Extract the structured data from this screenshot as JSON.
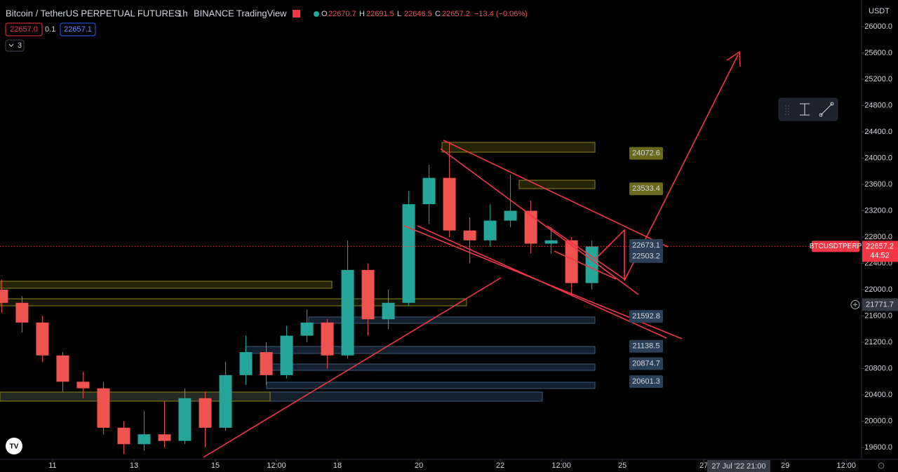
{
  "legend": {
    "symbol": "Bitcoin / TetherUS PERPETUAL FUTURES",
    "interval": "1h",
    "exchange": "BINANCE",
    "source": "TradingView",
    "ohlc": [
      {
        "key": "O",
        "value": "22670.7"
      },
      {
        "key": "H",
        "value": "22691.5"
      },
      {
        "key": "L",
        "value": "22646.5"
      },
      {
        "key": "C",
        "value": "22657.2"
      }
    ],
    "change": "−13.4 (−0.06%)",
    "sell": "22657.0",
    "spread": "0.1",
    "buy": "22657.1",
    "indicators": "3"
  },
  "chart_data": {
    "type": "candlestick",
    "currency": "USDT",
    "up_color": "#26a69a",
    "down_color": "#ef5350",
    "x": [
      -30,
      -18,
      -6,
      6,
      18,
      30,
      42,
      54,
      66,
      78,
      90,
      102,
      114,
      126,
      138,
      150,
      162,
      174,
      186,
      198,
      210,
      222,
      234,
      246,
      258,
      270,
      282,
      294,
      306,
      318
    ],
    "open": [
      22000,
      21800,
      21500,
      21000,
      20600,
      20500,
      19900,
      19650,
      19800,
      19700,
      20350,
      19900,
      20700,
      21050,
      20700,
      21300,
      21500,
      21000,
      22300,
      21550,
      21800,
      23300,
      23700,
      22900,
      22750,
      23050,
      23200,
      22700,
      22750,
      22100
    ],
    "high": [
      22150,
      21900,
      21600,
      21050,
      20750,
      20600,
      20000,
      20150,
      20300,
      20500,
      20450,
      20900,
      21300,
      21200,
      21450,
      21700,
      21550,
      22750,
      22400,
      22000,
      23500,
      23900,
      24250,
      23100,
      23300,
      23750,
      23350,
      22950,
      22800,
      22750
    ],
    "low": [
      21650,
      21350,
      20900,
      20450,
      20350,
      19800,
      19500,
      19550,
      19600,
      19650,
      19600,
      19850,
      20550,
      20550,
      20650,
      21200,
      20800,
      20950,
      21300,
      21400,
      21750,
      23000,
      22800,
      22400,
      22650,
      22950,
      22550,
      22550,
      21900,
      22000
    ],
    "close": [
      21800,
      21500,
      21000,
      20600,
      20500,
      19900,
      19650,
      19800,
      19700,
      20350,
      19900,
      20700,
      21050,
      20700,
      21300,
      21500,
      21000,
      22300,
      21550,
      21800,
      23300,
      23700,
      22900,
      22750,
      23050,
      23200,
      22700,
      22750,
      22100,
      22657.2
    ],
    "xlim": [
      -31,
      477
    ],
    "ylim": [
      19419,
      26405
    ],
    "xticks": [
      {
        "value": 0,
        "label": "11"
      },
      {
        "value": 48,
        "label": "13"
      },
      {
        "value": 96,
        "label": "15"
      },
      {
        "value": 132,
        "label": "12:00"
      },
      {
        "value": 168,
        "label": "18"
      },
      {
        "value": 216,
        "label": "20"
      },
      {
        "value": 264,
        "label": "22"
      },
      {
        "value": 300,
        "label": "12:00"
      },
      {
        "value": 336,
        "label": "25"
      },
      {
        "value": 384,
        "label": "27"
      },
      {
        "value": 432,
        "label": "29"
      },
      {
        "value": 468,
        "label": "12:00"
      }
    ],
    "yticks": [
      {
        "value": 19600,
        "label": "19600.0"
      },
      {
        "value": 20000,
        "label": "20000.0"
      },
      {
        "value": 20400,
        "label": "20400.0"
      },
      {
        "value": 20800,
        "label": "20800.0"
      },
      {
        "value": 21200,
        "label": "21200.0"
      },
      {
        "value": 21600,
        "label": "21600.0"
      },
      {
        "value": 22000,
        "label": "22000.0"
      },
      {
        "value": 22400,
        "label": "22400.0"
      },
      {
        "value": 22800,
        "label": "22800.0"
      },
      {
        "value": 23200,
        "label": "23200.0"
      },
      {
        "value": 23600,
        "label": "23600.0"
      },
      {
        "value": 24000,
        "label": "24000.0"
      },
      {
        "value": 24400,
        "label": "24400.0"
      },
      {
        "value": 24800,
        "label": "24800.0"
      },
      {
        "value": 25200,
        "label": "25200.0"
      },
      {
        "value": 25600,
        "label": "25600.0"
      },
      {
        "value": 26000,
        "label": "26000.0"
      }
    ],
    "levels": [
      {
        "value": 24072.6,
        "color": "#6b6a1c"
      },
      {
        "value": 23533.4,
        "color": "#6b6a1c"
      },
      {
        "value": 22673.1,
        "color": "#2a4058"
      },
      {
        "value": 22503.2,
        "color": "#2a4058"
      },
      {
        "value": 21592.8,
        "color": "#2a4058"
      },
      {
        "value": 21138.5,
        "color": "#2a4058"
      },
      {
        "value": 20874.7,
        "color": "#2a4058"
      },
      {
        "value": 20601.3,
        "color": "#2a4058"
      }
    ],
    "price_tag": {
      "symbol": "BTCUSDTPERP",
      "price": 22657.2,
      "countdown": "44:52"
    },
    "crosshair": {
      "price": 21771.7,
      "time": "27 Jul '22 21:00"
    }
  }
}
